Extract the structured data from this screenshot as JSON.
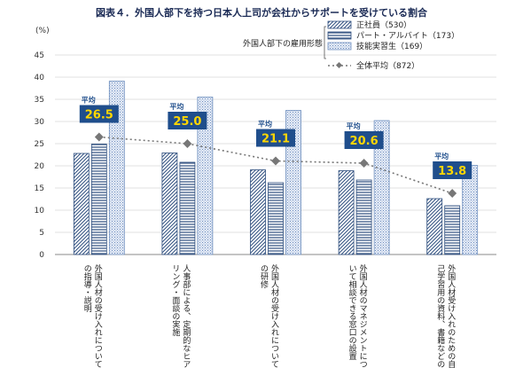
{
  "chart_data": {
    "type": "bar",
    "title": "図表４．外国人部下を持つ日本人上司が会社からサポートを受けている割合",
    "ylabel": "(%)",
    "ylim": [
      0,
      45
    ],
    "yticks": [
      0,
      5,
      10,
      15,
      20,
      25,
      30,
      35,
      40,
      45
    ],
    "grid": true,
    "legend_position": "top-right",
    "legend_title": "外国人部下の雇用形態",
    "categories": [
      "外国人材の受け入れについての指導・説明",
      "人事部による、定期的なヒアリング・面談の実施",
      "外国人材の受け入れについての研修",
      "外国人材のマネジメントについて相談できる窓口の設置",
      "外国人材受け入れのための自己学習用の資料、書籍などの配布"
    ],
    "series": [
      {
        "name": "正社員（530）",
        "values": [
          22.8,
          22.9,
          19.1,
          18.9,
          12.6
        ],
        "color": "#2f4f7f",
        "pattern": "diagonal"
      },
      {
        "name": "パート・アルバイト（173）",
        "values": [
          24.9,
          20.8,
          16.2,
          16.8,
          11.0
        ],
        "color": "#2f4f7f",
        "pattern": "horizontal"
      },
      {
        "name": "技能実習生（169）",
        "values": [
          39.1,
          35.5,
          32.5,
          30.2,
          20.1
        ],
        "color": "#6f8fbf",
        "pattern": "dots"
      }
    ],
    "average": {
      "name": "全体平均（872）",
      "label": "平均",
      "values": [
        26.5,
        25.0,
        21.1,
        20.6,
        13.8
      ],
      "value_labels": [
        "26.5",
        "25.0",
        "21.1",
        "20.6",
        "13.8"
      ],
      "color": "#777777",
      "box_color": "#1f4e8c",
      "text_color": "#ffd700"
    }
  }
}
